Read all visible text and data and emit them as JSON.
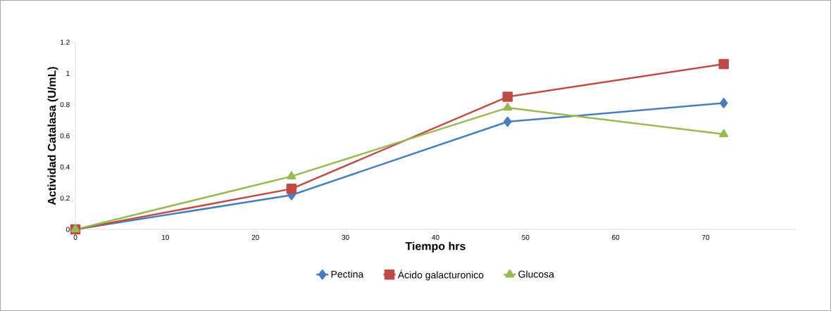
{
  "chart_data": {
    "type": "line",
    "xlabel": "Tiempo hrs",
    "ylabel": "Actividad Catalasa (U/mL)",
    "x": [
      0,
      24,
      48,
      72
    ],
    "series": [
      {
        "name": "Pectina",
        "color": "#4a7ebb",
        "marker": "diamond",
        "values": [
          0,
          0.22,
          0.69,
          0.81
        ]
      },
      {
        "name": "Ácido galacturonico",
        "color": "#be4b48",
        "marker": "square",
        "values": [
          0,
          0.26,
          0.85,
          1.06
        ]
      },
      {
        "name": "Glucosa",
        "color": "#98b954",
        "marker": "triangle",
        "values": [
          0,
          0.34,
          0.78,
          0.61
        ]
      }
    ],
    "xlim": [
      0,
      80
    ],
    "xticks": [
      0,
      10,
      20,
      30,
      40,
      50,
      60,
      70
    ],
    "ylim": [
      0,
      1.2
    ],
    "yticks": [
      0,
      0.2,
      0.4,
      0.6,
      0.8,
      1,
      1.2
    ],
    "grid": false,
    "legend": "bottom",
    "line_style": "solid"
  }
}
